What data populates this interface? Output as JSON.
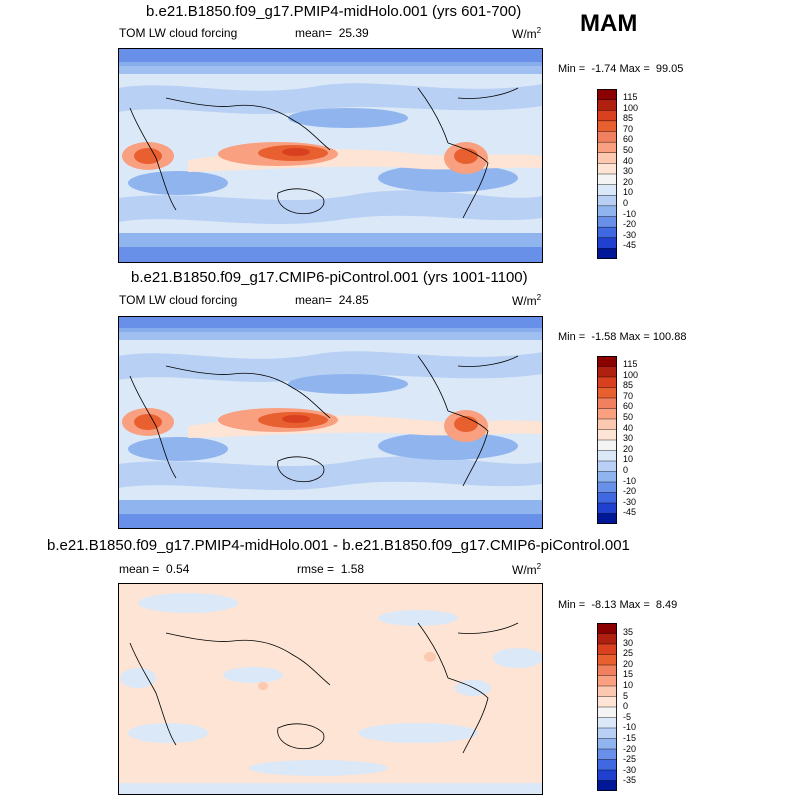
{
  "season": "MAM",
  "panels": [
    {
      "title": "b.e21.B1850.f09_g17.PMIP4-midHolo.001 (yrs 601-700)",
      "left_label": "TOM LW cloud forcing",
      "mean_label": "mean=",
      "mean_value": "25.39",
      "units_base": "W/m",
      "units_exp": "2",
      "min_label": "Min =",
      "min_value": "-1.74",
      "max_label": "Max =",
      "max_value": "99.05",
      "colorbar_levels": [
        "115",
        "100",
        "85",
        "70",
        "60",
        "50",
        "40",
        "30",
        "20",
        "10",
        "0",
        "-10",
        "-20",
        "-30",
        "-45"
      ]
    },
    {
      "title": "b.e21.B1850.f09_g17.CMIP6-piControl.001 (yrs 1001-1100)",
      "left_label": "TOM LW cloud forcing",
      "mean_label": "mean=",
      "mean_value": "24.85",
      "units_base": "W/m",
      "units_exp": "2",
      "min_label": "Min =",
      "min_value": "-1.58",
      "max_label": "Max =",
      "max_value": "100.88",
      "colorbar_levels": [
        "115",
        "100",
        "85",
        "70",
        "60",
        "50",
        "40",
        "30",
        "20",
        "10",
        "0",
        "-10",
        "-20",
        "-30",
        "-45"
      ]
    },
    {
      "title": "b.e21.B1850.f09_g17.PMIP4-midHolo.001 - b.e21.B1850.f09_g17.CMIP6-piControl.001",
      "mean_label": "mean =",
      "mean_value": "0.54",
      "rmse_label": "rmse =",
      "rmse_value": "1.58",
      "units_base": "W/m",
      "units_exp": "2",
      "min_label": "Min =",
      "min_value": "-8.13",
      "max_label": "Max =",
      "max_value": "8.49",
      "colorbar_levels": [
        "35",
        "30",
        "25",
        "20",
        "15",
        "10",
        "5",
        "0",
        "-5",
        "-10",
        "-15",
        "-20",
        "-25",
        "-30",
        "-35"
      ]
    }
  ],
  "colorbar_colors": [
    "#8b0000",
    "#b02010",
    "#d84020",
    "#e86030",
    "#f08060",
    "#f8a080",
    "#fcc8b0",
    "#fde4d4",
    "#f4f4f4",
    "#dbe8f8",
    "#b8d0f4",
    "#90b4ee",
    "#6890e8",
    "#4068e0",
    "#2040d0",
    "#001898"
  ]
}
